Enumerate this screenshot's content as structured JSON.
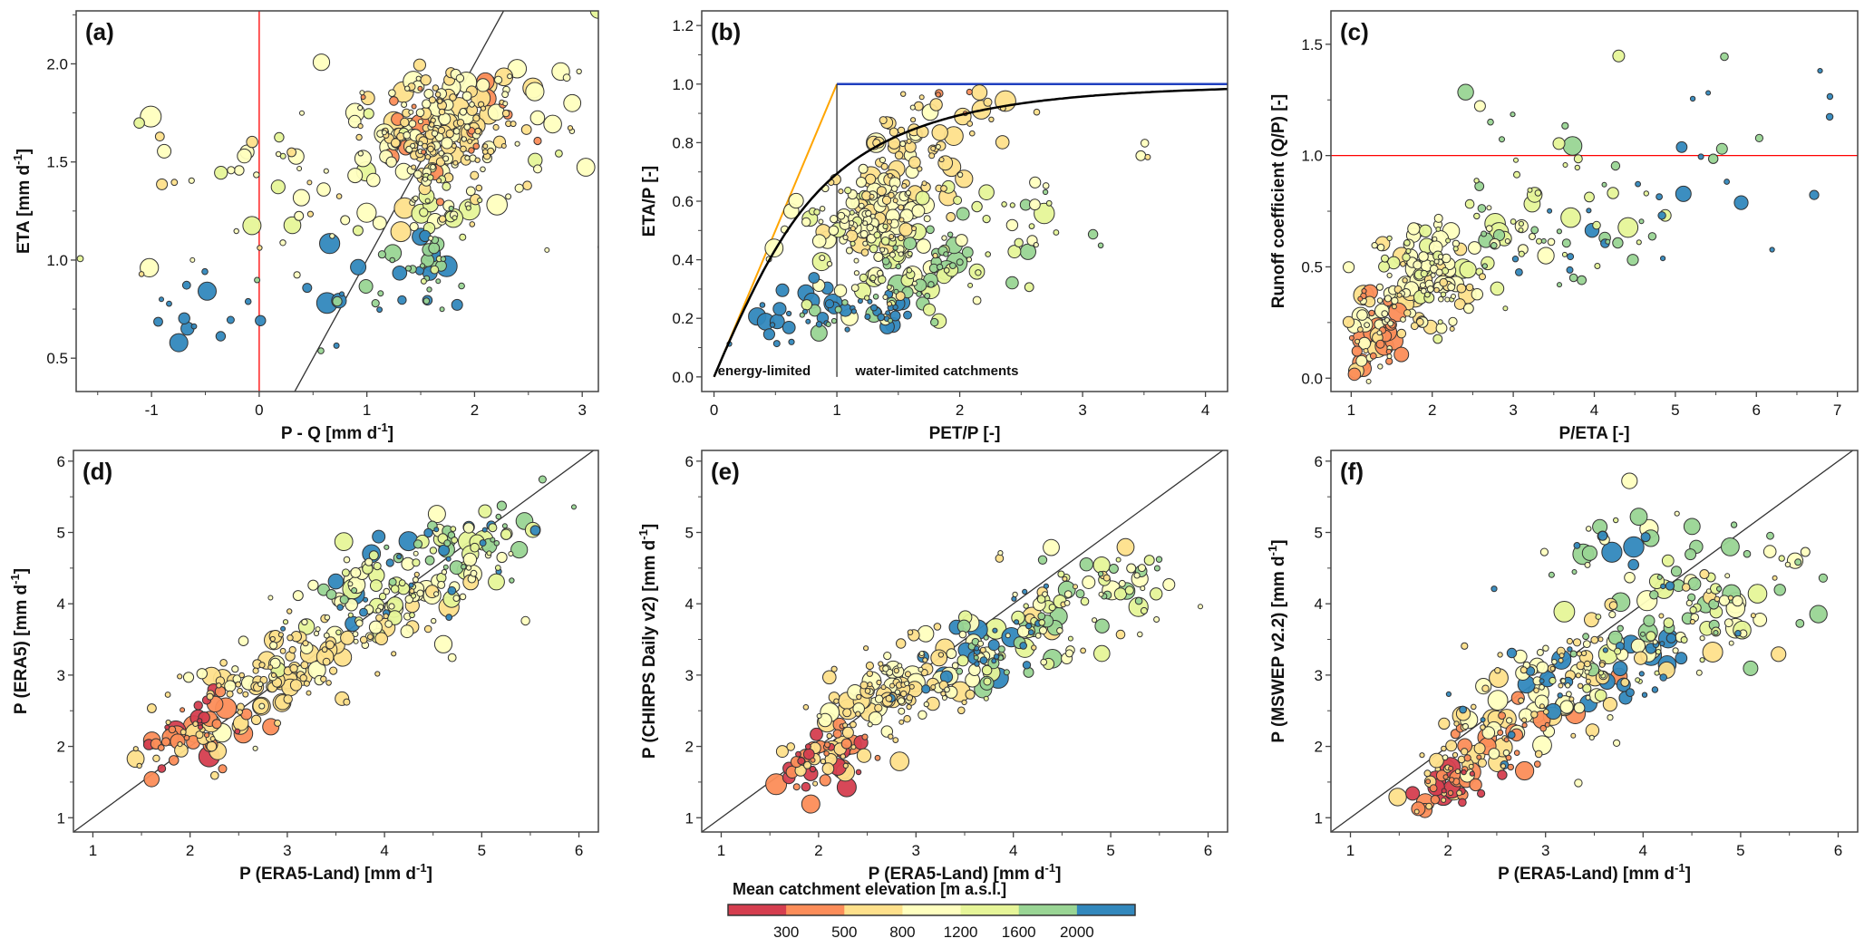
{
  "colorbar": {
    "title": "Mean catchment elevation [m a.s.l.]",
    "bins": [
      {
        "color": "#d53e4f"
      },
      {
        "color": "#fc8d59"
      },
      {
        "color": "#fee08b"
      },
      {
        "color": "#ffffbf"
      },
      {
        "color": "#e6f598"
      },
      {
        "color": "#99d594"
      },
      {
        "color": "#3288bd"
      }
    ],
    "labels": [
      "300",
      "500",
      "800",
      "1200",
      "1600",
      "2000"
    ]
  },
  "chart_data": [
    {
      "id": "a",
      "type": "scatter",
      "panel_label": "(a)",
      "xlabel": "P - Q [mm d",
      "xlabel_sup": "-1",
      "xlabel_end": "]",
      "ylabel": "ETA [mm d",
      "ylabel_sup": "-1",
      "ylabel_end": "]",
      "xlim": [
        -1.7,
        3.15
      ],
      "ylim": [
        0.33,
        2.27
      ],
      "xticks": [
        -1,
        0,
        1,
        2,
        3
      ],
      "xtick_labels": [
        "-1",
        "0",
        "1",
        "2",
        "3"
      ],
      "xminor": [
        -1.5,
        -0.5,
        0.5,
        1.5,
        2.5
      ],
      "yticks": [
        0.5,
        1.0,
        1.5,
        2.0
      ],
      "ytick_labels": [
        "0.5",
        "1.0",
        "1.5",
        "2.0"
      ],
      "yminor": [
        0.75,
        1.25,
        1.75,
        2.25
      ],
      "reference_lines": [
        {
          "name": "zero-line",
          "color": "#ff0000",
          "x": [
            0,
            0
          ],
          "y": [
            0.33,
            2.27
          ]
        },
        {
          "name": "one-to-one-line",
          "color": "#333333",
          "x": [
            0.33,
            2.27
          ],
          "y": [
            0.33,
            2.27
          ]
        }
      ],
      "legend": "none",
      "seed": 11,
      "clusters": [
        {
          "cx": 1.75,
          "cy": 1.62,
          "sx": 0.35,
          "sy": 0.12,
          "n": 150,
          "bins": [
            1,
            2,
            2,
            3,
            3,
            2
          ]
        },
        {
          "cx": 1.75,
          "cy": 1.82,
          "sx": 0.45,
          "sy": 0.08,
          "n": 55,
          "bins": [
            2,
            2,
            3,
            3,
            1
          ]
        },
        {
          "cx": 1.7,
          "cy": 1.3,
          "sx": 0.2,
          "sy": 0.12,
          "n": 40,
          "bins": [
            3,
            3,
            4,
            4,
            2
          ]
        },
        {
          "cx": 1.55,
          "cy": 1.0,
          "sx": 0.18,
          "sy": 0.1,
          "n": 30,
          "bins": [
            4,
            5,
            5,
            5,
            6
          ]
        },
        {
          "cx": 0.6,
          "cy": 1.45,
          "sx": 0.5,
          "sy": 0.2,
          "n": 45,
          "bins": [
            2,
            2,
            3,
            3,
            4
          ]
        },
        {
          "cx": 0.9,
          "cy": 0.8,
          "sx": 0.4,
          "sy": 0.12,
          "n": 18,
          "bins": [
            6,
            6,
            5
          ]
        },
        {
          "cx": -0.6,
          "cy": 0.7,
          "sx": 0.35,
          "sy": 0.15,
          "n": 14,
          "bins": [
            6,
            6,
            6
          ]
        },
        {
          "cx": -0.6,
          "cy": 1.45,
          "sx": 0.5,
          "sy": 0.25,
          "n": 14,
          "bins": [
            2,
            3,
            3,
            4
          ]
        },
        {
          "cx": 2.6,
          "cy": 1.5,
          "sx": 0.3,
          "sy": 0.25,
          "n": 18,
          "bins": [
            2,
            3,
            3,
            4
          ]
        }
      ]
    },
    {
      "id": "b",
      "type": "scatter",
      "panel_label": "(b)",
      "xlabel": "PET/P [-]",
      "ylabel": "ETA/P [-]",
      "xlim": [
        -0.1,
        4.18
      ],
      "ylim": [
        -0.05,
        1.25
      ],
      "xticks": [
        0,
        1,
        2,
        3,
        4
      ],
      "xtick_labels": [
        "0",
        "1",
        "2",
        "3",
        "4"
      ],
      "xminor": [
        0.5,
        1.5,
        2.5,
        3.5
      ],
      "yticks": [
        0.0,
        0.2,
        0.4,
        0.6,
        0.8,
        1.0,
        1.2
      ],
      "ytick_labels": [
        "0.0",
        "0.2",
        "0.4",
        "0.6",
        "0.8",
        "1.0",
        "1.2"
      ],
      "yminor": [
        0.1,
        0.3,
        0.5,
        0.7,
        0.9,
        1.1
      ],
      "reference_lines": [
        {
          "name": "energy-limit-line",
          "color": "#ffa500",
          "x": [
            0,
            1
          ],
          "y": [
            0,
            1
          ]
        },
        {
          "name": "water-limit-line",
          "color": "#1f3fbf",
          "x": [
            1,
            4.18
          ],
          "y": [
            1,
            1
          ]
        },
        {
          "name": "aridity-divider-line",
          "color": "#333333",
          "x": [
            1,
            1
          ],
          "y": [
            0,
            1
          ]
        }
      ],
      "budyko_curve": {
        "name": "budyko-curve",
        "color": "#000000"
      },
      "annotations": [
        "energy-limited",
        "water-limited catchments"
      ],
      "legend": "none",
      "seed": 23,
      "clusters": [
        {
          "cx": 1.55,
          "cy": 0.72,
          "sx": 0.22,
          "sy": 0.08,
          "n": 70,
          "bins": [
            2,
            2,
            3,
            2
          ]
        },
        {
          "cx": 1.25,
          "cy": 0.5,
          "sx": 0.3,
          "sy": 0.1,
          "n": 140,
          "bins": [
            3,
            3,
            3,
            4,
            2
          ]
        },
        {
          "cx": 1.6,
          "cy": 0.35,
          "sx": 0.35,
          "sy": 0.08,
          "n": 70,
          "bins": [
            4,
            4,
            5,
            5,
            3
          ]
        },
        {
          "cx": 1.2,
          "cy": 0.22,
          "sx": 0.3,
          "sy": 0.04,
          "n": 40,
          "bins": [
            6,
            6,
            5,
            6
          ]
        },
        {
          "cx": 0.6,
          "cy": 0.18,
          "sx": 0.2,
          "sy": 0.05,
          "n": 16,
          "bins": [
            6,
            6
          ]
        },
        {
          "cx": 1.97,
          "cy": 0.94,
          "sx": 0.12,
          "sy": 0.02,
          "n": 8,
          "bins": [
            1,
            1,
            2
          ]
        },
        {
          "cx": 2.1,
          "cy": 0.86,
          "sx": 0.2,
          "sy": 0.04,
          "n": 10,
          "bins": [
            2,
            2
          ]
        },
        {
          "cx": 2.45,
          "cy": 0.52,
          "sx": 0.3,
          "sy": 0.08,
          "n": 22,
          "bins": [
            4,
            4,
            3,
            5
          ]
        },
        {
          "cx": 3.3,
          "cy": 0.76,
          "sx": 0.35,
          "sy": 0.02,
          "n": 4,
          "bins": [
            2,
            3
          ]
        }
      ]
    },
    {
      "id": "c",
      "type": "scatter",
      "panel_label": "(c)",
      "xlabel": "P/ETA [-]",
      "ylabel": "Runoff coefficient (Q/P) [-]",
      "xlim": [
        0.75,
        7.25
      ],
      "ylim": [
        -0.06,
        1.65
      ],
      "xticks": [
        1,
        2,
        3,
        4,
        5,
        6,
        7
      ],
      "xtick_labels": [
        "1",
        "2",
        "3",
        "4",
        "5",
        "6",
        "7"
      ],
      "xminor": [
        1.5,
        2.5,
        3.5,
        4.5,
        5.5,
        6.5
      ],
      "yticks": [
        0.0,
        0.5,
        1.0,
        1.5
      ],
      "ytick_labels": [
        "0.0",
        "0.5",
        "1.0",
        "1.5"
      ],
      "yminor": [
        0.25,
        0.75,
        1.25
      ],
      "reference_lines": [
        {
          "name": "unit-runoff-line",
          "color": "#ff0000",
          "x": [
            0.75,
            7.25
          ],
          "y": [
            1.0,
            1.0
          ]
        }
      ],
      "legend": "none",
      "seed": 37,
      "clusters": [
        {
          "cx": 1.35,
          "cy": 0.2,
          "sx": 0.18,
          "sy": 0.09,
          "n": 60,
          "bins": [
            1,
            1,
            2,
            3,
            3
          ]
        },
        {
          "cx": 1.9,
          "cy": 0.45,
          "sx": 0.3,
          "sy": 0.12,
          "n": 120,
          "bins": [
            2,
            3,
            3,
            4,
            3
          ]
        },
        {
          "cx": 2.9,
          "cy": 0.65,
          "sx": 0.4,
          "sy": 0.12,
          "n": 40,
          "bins": [
            3,
            4,
            4,
            5
          ]
        },
        {
          "cx": 4.1,
          "cy": 0.65,
          "sx": 0.5,
          "sy": 0.1,
          "n": 35,
          "bins": [
            5,
            5,
            6,
            4
          ]
        },
        {
          "cx": 3.5,
          "cy": 1.1,
          "sx": 0.7,
          "sy": 0.15,
          "n": 14,
          "bins": [
            3,
            4,
            5
          ]
        },
        {
          "cx": 5.6,
          "cy": 1.0,
          "sx": 0.6,
          "sy": 0.25,
          "n": 14,
          "bins": [
            6,
            6,
            5
          ]
        },
        {
          "cx": 6.8,
          "cy": 1.3,
          "sx": 0.3,
          "sy": 0.15,
          "n": 3,
          "bins": [
            6
          ]
        }
      ]
    },
    {
      "id": "d",
      "type": "scatter",
      "panel_label": "(d)",
      "xlabel": "P (ERA5-Land) [mm d",
      "xlabel_sup": "-1",
      "xlabel_end": "]",
      "ylabel": "P (ERA5) [mm d",
      "ylabel_sup": "-1",
      "ylabel_end": "]",
      "xlim": [
        0.8,
        6.2
      ],
      "ylim": [
        0.8,
        6.15
      ],
      "xticks": [
        1,
        2,
        3,
        4,
        5,
        6
      ],
      "xtick_labels": [
        "1",
        "2",
        "3",
        "4",
        "5",
        "6"
      ],
      "xminor": [
        1.5,
        2.5,
        3.5,
        4.5,
        5.5
      ],
      "yticks": [
        1,
        2,
        3,
        4,
        5,
        6
      ],
      "ytick_labels": [
        "1",
        "2",
        "3",
        "4",
        "5",
        "6"
      ],
      "yminor": [
        1.5,
        2.5,
        3.5,
        4.5,
        5.5
      ],
      "reference_lines": [
        {
          "name": "one-to-one-line",
          "color": "#333333",
          "x": [
            0.8,
            6.2
          ],
          "y": [
            0.8,
            6.2
          ]
        }
      ],
      "legend": "none",
      "seed": 41,
      "diag": {
        "slope": 1.03,
        "offset": 0.0,
        "spread": 0.18
      },
      "clusters": [
        {
          "cx": 2.1,
          "cy": 2.2,
          "sx": 0.25,
          "sy": 0.2,
          "n": 60,
          "bins": [
            0,
            1,
            1,
            2,
            2
          ]
        },
        {
          "cx": 2.9,
          "cy": 3.0,
          "sx": 0.35,
          "sy": 0.25,
          "n": 110,
          "bins": [
            2,
            2,
            3,
            2
          ]
        },
        {
          "cx": 3.8,
          "cy": 4.2,
          "sx": 0.3,
          "sy": 0.3,
          "n": 60,
          "bins": [
            6,
            6,
            5,
            4,
            3
          ]
        },
        {
          "cx": 4.3,
          "cy": 4.0,
          "sx": 0.35,
          "sy": 0.25,
          "n": 60,
          "bins": [
            3,
            3,
            4,
            2
          ]
        },
        {
          "cx": 4.9,
          "cy": 4.9,
          "sx": 0.35,
          "sy": 0.25,
          "n": 60,
          "bins": [
            3,
            4,
            4,
            5,
            6
          ]
        }
      ]
    },
    {
      "id": "e",
      "type": "scatter",
      "panel_label": "(e)",
      "xlabel": "P (ERA5-Land) [mm d",
      "xlabel_sup": "-1",
      "xlabel_end": "]",
      "ylabel": "P (CHIRPS Daily v2) [mm d",
      "ylabel_sup": "-1",
      "ylabel_end": "]",
      "xlim": [
        0.8,
        6.2
      ],
      "ylim": [
        0.8,
        6.15
      ],
      "xticks": [
        1,
        2,
        3,
        4,
        5,
        6
      ],
      "xtick_labels": [
        "1",
        "2",
        "3",
        "4",
        "5",
        "6"
      ],
      "xminor": [
        1.5,
        2.5,
        3.5,
        4.5,
        5.5
      ],
      "yticks": [
        1,
        2,
        3,
        4,
        5,
        6
      ],
      "ytick_labels": [
        "1",
        "2",
        "3",
        "4",
        "5",
        "6"
      ],
      "yminor": [
        1.5,
        2.5,
        3.5,
        4.5,
        5.5
      ],
      "reference_lines": [
        {
          "name": "one-to-one-line",
          "color": "#333333",
          "x": [
            0.8,
            6.2
          ],
          "y": [
            0.8,
            6.2
          ]
        }
      ],
      "legend": "none",
      "seed": 53,
      "clusters": [
        {
          "cx": 2.1,
          "cy": 1.9,
          "sx": 0.22,
          "sy": 0.18,
          "n": 60,
          "bins": [
            0,
            1,
            1,
            2,
            2
          ]
        },
        {
          "cx": 2.9,
          "cy": 2.8,
          "sx": 0.35,
          "sy": 0.25,
          "n": 120,
          "bins": [
            2,
            2,
            3,
            2,
            3
          ]
        },
        {
          "cx": 3.8,
          "cy": 3.4,
          "sx": 0.3,
          "sy": 0.3,
          "n": 60,
          "bins": [
            6,
            5,
            4,
            3,
            6
          ]
        },
        {
          "cx": 4.5,
          "cy": 3.9,
          "sx": 0.4,
          "sy": 0.3,
          "n": 70,
          "bins": [
            3,
            3,
            4,
            5,
            2
          ]
        },
        {
          "cx": 5.2,
          "cy": 4.4,
          "sx": 0.2,
          "sy": 0.25,
          "n": 20,
          "bins": [
            3,
            4,
            5
          ]
        }
      ]
    },
    {
      "id": "f",
      "type": "scatter",
      "panel_label": "(f)",
      "xlabel": "P (ERA5-Land) [mm d",
      "xlabel_sup": "-1",
      "xlabel_end": "]",
      "ylabel": "P (MSWEP v2.2) [mm d",
      "ylabel_sup": "-1",
      "ylabel_end": "]",
      "xlim": [
        0.8,
        6.2
      ],
      "ylim": [
        0.8,
        6.15
      ],
      "xticks": [
        1,
        2,
        3,
        4,
        5,
        6
      ],
      "xtick_labels": [
        "1",
        "2",
        "3",
        "4",
        "5",
        "6"
      ],
      "xminor": [
        1.5,
        2.5,
        3.5,
        4.5,
        5.5
      ],
      "yticks": [
        1,
        2,
        3,
        4,
        5,
        6
      ],
      "ytick_labels": [
        "1",
        "2",
        "3",
        "4",
        "5",
        "6"
      ],
      "yminor": [
        1.5,
        2.5,
        3.5,
        4.5,
        5.5
      ],
      "reference_lines": [
        {
          "name": "one-to-one-line",
          "color": "#333333",
          "x": [
            0.8,
            6.2
          ],
          "y": [
            0.8,
            6.2
          ]
        }
      ],
      "legend": "none",
      "seed": 67,
      "clusters": [
        {
          "cx": 2.05,
          "cy": 1.5,
          "sx": 0.18,
          "sy": 0.15,
          "n": 55,
          "bins": [
            0,
            1,
            1,
            2,
            2
          ]
        },
        {
          "cx": 2.5,
          "cy": 2.2,
          "sx": 0.3,
          "sy": 0.25,
          "n": 60,
          "bins": [
            1,
            2,
            2,
            3
          ]
        },
        {
          "cx": 3.2,
          "cy": 3.0,
          "sx": 0.35,
          "sy": 0.3,
          "n": 100,
          "bins": [
            2,
            2,
            3,
            3,
            6
          ]
        },
        {
          "cx": 3.9,
          "cy": 3.4,
          "sx": 0.3,
          "sy": 0.3,
          "n": 40,
          "bins": [
            6,
            6,
            4,
            5
          ]
        },
        {
          "cx": 3.8,
          "cy": 4.6,
          "sx": 0.4,
          "sy": 0.4,
          "n": 35,
          "bins": [
            5,
            5,
            4,
            6,
            3
          ]
        },
        {
          "cx": 4.8,
          "cy": 4.0,
          "sx": 0.45,
          "sy": 0.35,
          "n": 70,
          "bins": [
            3,
            3,
            4,
            2,
            5
          ]
        }
      ]
    }
  ]
}
